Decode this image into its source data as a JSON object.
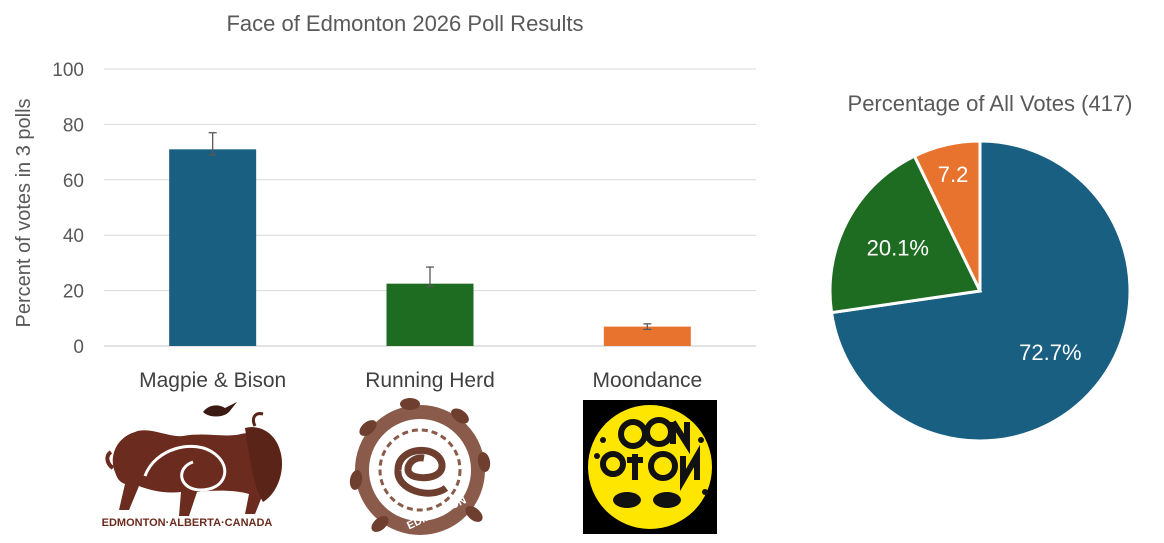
{
  "chart_data": [
    {
      "type": "bar",
      "title": "Face of Edmonton 2026 Poll Results",
      "ylabel": "Percent of votes in 3 polls",
      "xlabel": "",
      "ylim": [
        0,
        100
      ],
      "yticks": [
        0,
        20,
        40,
        60,
        80,
        100
      ],
      "grid": true,
      "categories": [
        "Magpie & Bison",
        "Running Herd",
        "Moondance"
      ],
      "values": [
        71,
        22.5,
        7
      ],
      "error_bars": [
        {
          "low": 69,
          "high": 77
        },
        {
          "low": 21.5,
          "high": 28.5
        },
        {
          "low": 6,
          "high": 8
        }
      ],
      "colors": [
        "#185F82",
        "#1E6B22",
        "#E8732E"
      ],
      "logos": [
        {
          "icon": "magpie-bison-logo",
          "text": "EDMONTON·ALBERTA·CANADA",
          "color": "#6B2B1E"
        },
        {
          "icon": "running-herd-logo",
          "text": "EDMONTON",
          "color": "#7A4A3A"
        },
        {
          "icon": "moondance-logo",
          "text": "",
          "color": "#FFE600"
        }
      ]
    },
    {
      "type": "pie",
      "title": "Percentage of All Votes (417)",
      "slices": [
        {
          "label": "72.7%",
          "value": 72.7,
          "color": "#185F82"
        },
        {
          "label": "20.1%",
          "value": 20.1,
          "color": "#1E6B22"
        },
        {
          "label": "7.2",
          "value": 7.2,
          "color": "#E8732E"
        }
      ]
    }
  ]
}
